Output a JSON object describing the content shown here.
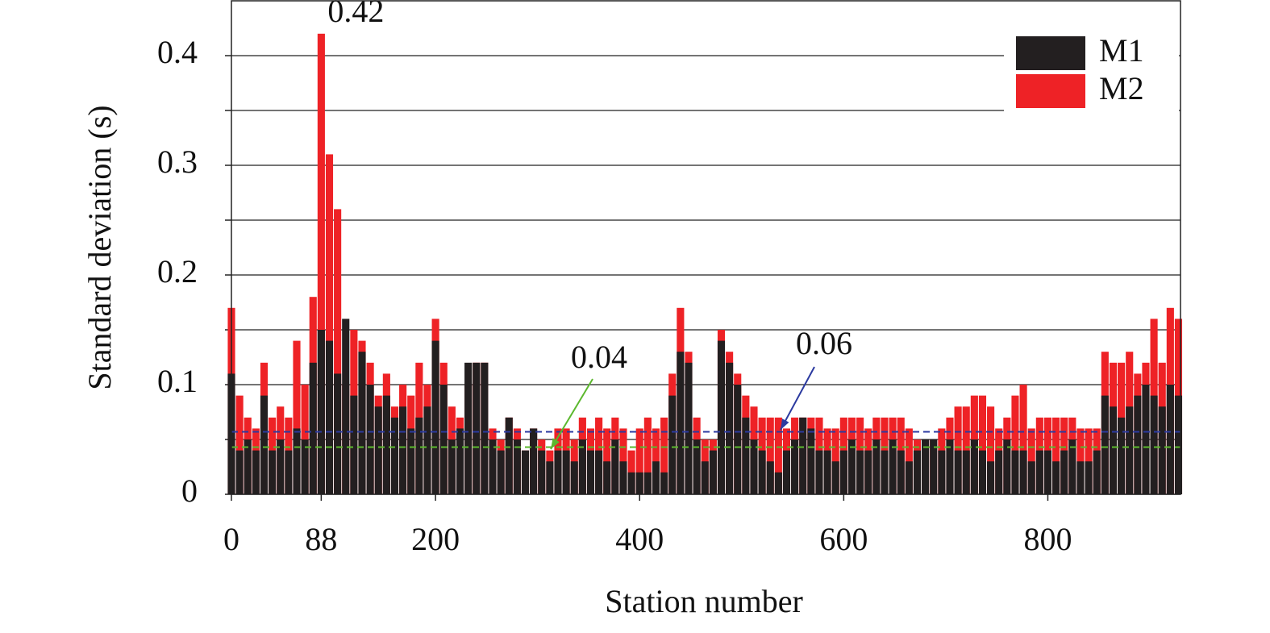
{
  "chart_data": {
    "type": "bar",
    "x_label": "Station number",
    "y_label": "Standard deviation (s)",
    "xlim": [
      0,
      930
    ],
    "ylim": [
      0,
      0.45
    ],
    "xticks": [
      0,
      88,
      200,
      400,
      600,
      800
    ],
    "yticks": [
      0,
      {
        "value": 0.05,
        "label": null
      },
      0.1,
      {
        "value": 0.15,
        "label": null
      },
      0.2,
      {
        "value": 0.25,
        "label": null
      },
      0.3,
      {
        "value": 0.35,
        "label": null
      },
      0.4
    ],
    "grid": true,
    "legend": "upper right",
    "x": [
      0,
      8,
      16,
      24,
      32,
      40,
      48,
      56,
      64,
      72,
      80,
      88,
      96,
      104,
      112,
      120,
      128,
      136,
      144,
      152,
      160,
      168,
      176,
      184,
      192,
      200,
      208,
      216,
      224,
      232,
      240,
      248,
      256,
      264,
      272,
      280,
      288,
      296,
      304,
      312,
      320,
      328,
      336,
      344,
      352,
      360,
      368,
      376,
      384,
      392,
      400,
      408,
      416,
      424,
      432,
      440,
      448,
      456,
      464,
      472,
      480,
      488,
      496,
      504,
      512,
      520,
      528,
      536,
      544,
      552,
      560,
      568,
      576,
      584,
      592,
      600,
      608,
      616,
      624,
      632,
      640,
      648,
      656,
      664,
      672,
      680,
      688,
      696,
      704,
      712,
      720,
      728,
      736,
      744,
      752,
      760,
      768,
      776,
      784,
      792,
      800,
      808,
      816,
      824,
      832,
      840,
      848,
      856,
      864,
      872,
      880,
      888,
      896,
      904,
      912,
      920,
      928
    ],
    "series": [
      {
        "name": "M2",
        "color": "#ee2226",
        "values": [
          0.17,
          0.09,
          0.07,
          0.06,
          0.12,
          0.07,
          0.08,
          0.07,
          0.14,
          0.1,
          0.18,
          0.42,
          0.31,
          0.26,
          0.1,
          0.15,
          0.14,
          0.12,
          0.09,
          0.11,
          0.08,
          0.1,
          0.09,
          0.12,
          0.1,
          0.16,
          0.12,
          0.08,
          0.07,
          0.1,
          0.12,
          0.12,
          0.06,
          0.05,
          0.07,
          0.06,
          0.04,
          0.06,
          0.05,
          0.04,
          0.06,
          0.06,
          0.05,
          0.07,
          0.06,
          0.07,
          0.06,
          0.07,
          0.06,
          0.04,
          0.06,
          0.07,
          0.06,
          0.07,
          0.11,
          0.17,
          0.13,
          0.07,
          0.05,
          0.05,
          0.15,
          0.13,
          0.11,
          0.09,
          0.08,
          0.07,
          0.07,
          0.07,
          0.06,
          0.07,
          0.07,
          0.07,
          0.07,
          0.06,
          0.06,
          0.07,
          0.07,
          0.07,
          0.06,
          0.07,
          0.07,
          0.07,
          0.07,
          0.06,
          0.05,
          0.05,
          0.05,
          0.06,
          0.07,
          0.08,
          0.08,
          0.09,
          0.09,
          0.08,
          0.06,
          0.07,
          0.09,
          0.1,
          0.06,
          0.07,
          0.07,
          0.07,
          0.07,
          0.07,
          0.06,
          0.06,
          0.06,
          0.13,
          0.12,
          0.12,
          0.13,
          0.11,
          0.12,
          0.16,
          0.12,
          0.17,
          0.16
        ]
      },
      {
        "name": "M1",
        "color": "#231f20",
        "values": [
          0.11,
          0.04,
          0.05,
          0.04,
          0.09,
          0.04,
          0.05,
          0.04,
          0.06,
          0.05,
          0.12,
          0.15,
          0.14,
          0.11,
          0.16,
          0.09,
          0.13,
          0.1,
          0.08,
          0.09,
          0.07,
          0.08,
          0.06,
          0.07,
          0.08,
          0.14,
          0.1,
          0.05,
          0.06,
          0.12,
          0.12,
          0.12,
          0.05,
          0.04,
          0.07,
          0.05,
          0.04,
          0.06,
          0.04,
          0.03,
          0.04,
          0.04,
          0.03,
          0.05,
          0.04,
          0.04,
          0.03,
          0.05,
          0.03,
          0.02,
          0.02,
          0.02,
          0.03,
          0.02,
          0.09,
          0.13,
          0.12,
          0.05,
          0.03,
          0.04,
          0.14,
          0.12,
          0.1,
          0.07,
          0.05,
          0.04,
          0.03,
          0.02,
          0.04,
          0.05,
          0.07,
          0.06,
          0.04,
          0.04,
          0.03,
          0.04,
          0.05,
          0.04,
          0.04,
          0.05,
          0.04,
          0.05,
          0.04,
          0.03,
          0.04,
          0.05,
          0.05,
          0.04,
          0.05,
          0.04,
          0.04,
          0.05,
          0.04,
          0.03,
          0.04,
          0.05,
          0.04,
          0.04,
          0.03,
          0.04,
          0.04,
          0.03,
          0.04,
          0.05,
          0.03,
          0.03,
          0.04,
          0.09,
          0.08,
          0.07,
          0.08,
          0.09,
          0.1,
          0.09,
          0.08,
          0.1,
          0.09
        ]
      }
    ],
    "reference_lines": [
      {
        "value": 0.057,
        "label": "0.06",
        "color": "#2b3aa0"
      },
      {
        "value": 0.043,
        "label": "0.04",
        "color": "#5cb82e"
      }
    ],
    "annotations": [
      {
        "x": 88,
        "y": 0.42,
        "label": "0.42"
      }
    ]
  }
}
